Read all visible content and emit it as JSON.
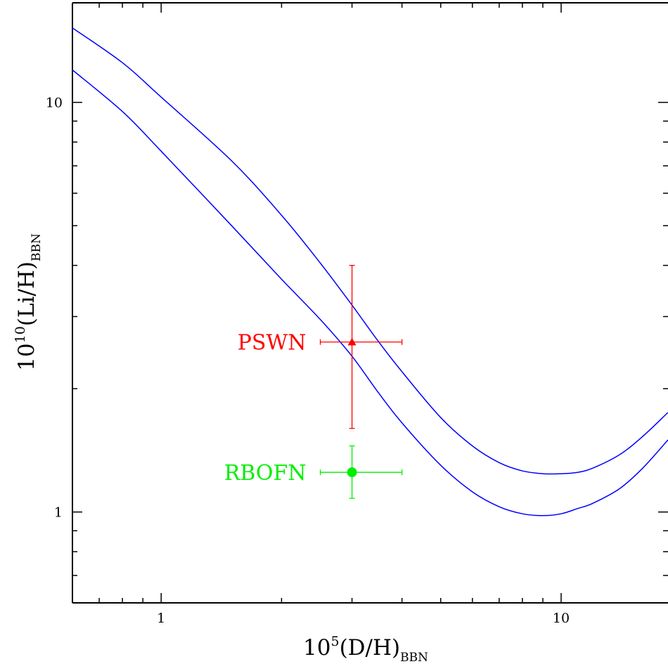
{
  "chart_data": {
    "type": "line",
    "xscale": "log",
    "yscale": "log",
    "xlim": [
      0.6,
      18.5
    ],
    "ylim": [
      0.6,
      17.5
    ],
    "xlabel": {
      "main": "10",
      "sup": "5",
      "rest": "(D/H)",
      "sub": "BBN"
    },
    "ylabel": {
      "main": "10",
      "sup": "10",
      "rest": "(Li/H)",
      "sub": "BBN"
    },
    "xticks": [
      {
        "value": 1,
        "label": "1"
      },
      {
        "value": 10,
        "label": "10"
      }
    ],
    "yticks": [
      {
        "value": 1,
        "label": "1"
      },
      {
        "value": 10,
        "label": "10"
      }
    ],
    "colors": {
      "curve": "#0000ff",
      "pswn": "#ff0000",
      "rbofn": "#00ee00"
    },
    "series": [
      {
        "x": [
          0.6,
          0.8,
          1.0,
          1.5,
          2.0,
          2.5,
          3.0,
          3.5,
          4.0,
          5.0,
          6.0,
          7.0,
          8.0,
          9.0,
          10.0,
          11.0,
          12.0,
          14.0,
          16.0,
          18.5
        ],
        "y": [
          15.2,
          12.5,
          10.3,
          7.2,
          5.3,
          4.05,
          3.2,
          2.6,
          2.2,
          1.7,
          1.45,
          1.32,
          1.26,
          1.24,
          1.24,
          1.25,
          1.28,
          1.38,
          1.53,
          1.75
        ]
      },
      {
        "x": [
          0.6,
          0.8,
          1.0,
          1.5,
          2.0,
          2.5,
          3.0,
          3.5,
          4.0,
          5.0,
          6.0,
          7.0,
          8.0,
          9.0,
          10.0,
          11.0,
          12.0,
          14.0,
          16.0,
          18.5
        ],
        "y": [
          12.0,
          9.5,
          7.6,
          5.0,
          3.7,
          2.95,
          2.4,
          1.95,
          1.65,
          1.3,
          1.12,
          1.03,
          0.99,
          0.98,
          0.99,
          1.02,
          1.05,
          1.14,
          1.28,
          1.5
        ]
      }
    ],
    "points": [
      {
        "label": "PSWN",
        "marker": "triangle",
        "x": 3.0,
        "y": 2.6,
        "xerr": [
          2.5,
          4.0
        ],
        "yerr": [
          1.6,
          4.0
        ]
      },
      {
        "label": "RBOFN",
        "marker": "circle",
        "x": 3.0,
        "y": 1.25,
        "xerr": [
          2.5,
          4.0
        ],
        "yerr": [
          1.08,
          1.45
        ]
      }
    ]
  }
}
